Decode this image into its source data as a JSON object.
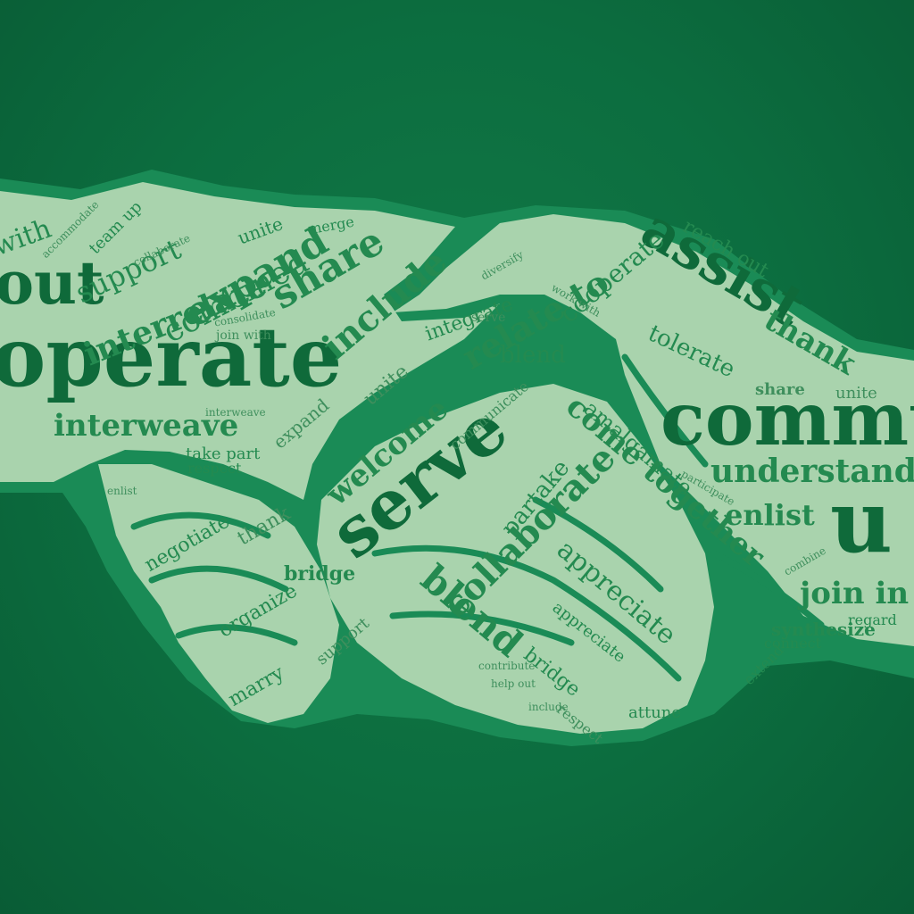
{
  "colors": {
    "background": "#0c6d3f",
    "outline": "#1a8b56",
    "hands": "#a9d3ad",
    "text_dark": "#0f6a3a",
    "text_mid": "#248a50"
  },
  "words": {
    "cooperate": "operate",
    "communicate": "commu",
    "unite_big": "u",
    "serve": "serve",
    "collaborate": "collaborate",
    "assist": "assist",
    "interweave": "interweave",
    "expand": "expand",
    "combined": "combined",
    "interrelate": "interrelate",
    "support": "support",
    "share": "share",
    "include": "include",
    "welcome": "welcome",
    "blend": "blend",
    "blend2": "blend",
    "relate_to": "relate to",
    "cooperate2": "cooperate",
    "integrate": "integrate",
    "reach_out": "reach out",
    "thank": "thank",
    "tolerate": "tolerate",
    "understand": "understand",
    "enlist": "enlist",
    "join_in": "join in",
    "amalgamate": "amalgamate",
    "come_together": "come together",
    "partake": "partake",
    "appreciate": "appreciate",
    "appreciate2": "appreciate",
    "bridge": "bridge",
    "bridge2": "bridge",
    "negotiate": "negotiate",
    "organize": "organize",
    "marry": "marry",
    "connect": "connect",
    "synthesize": "synthesize",
    "attune": "attune",
    "respect": "respect",
    "take_part": "take part",
    "unite": "unite",
    "merge": "merge",
    "out": "out",
    "with": "with",
    "team_up": "team up",
    "regard": "regard",
    "extend": "extend",
    "help_out": "help out",
    "contribute": "contribute",
    "diversify": "diversify",
    "work_with": "work with",
    "accommodate": "accommodate",
    "communicate_small": "communicate",
    "collaborate_small": "collaborate",
    "serve_small": "serve",
    "share2": "share",
    "unite2": "unite",
    "consolidate": "consolidate",
    "join_with": "join with",
    "participate": "participate",
    "combine": "combine",
    "enlist2": "enlist",
    "support2": "support",
    "interweave2": "interweave",
    "thank2": "thank",
    "respect2": "respect",
    "expand2": "expand",
    "include2": "include",
    "unite3": "unite"
  }
}
